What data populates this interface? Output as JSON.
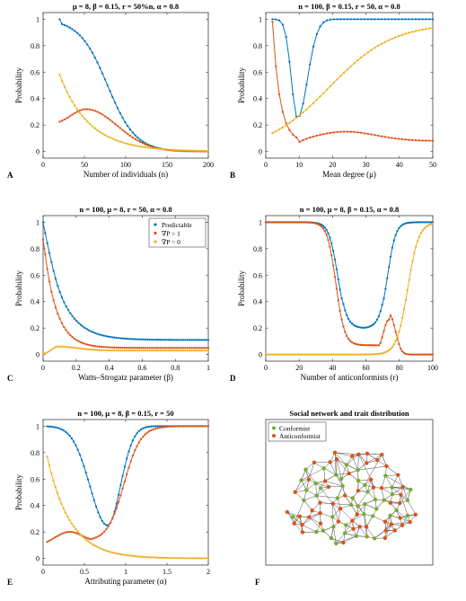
{
  "chart_data": [
    {
      "id": "A",
      "type": "line",
      "panel_label": "A",
      "title": "μ = 8, β = 0.15, r = 50%n, α = 0.8",
      "xlabel": "Number of individuals (n)",
      "ylabel": "Probability",
      "xlim": [
        0,
        200
      ],
      "ylim": [
        -0.05,
        1.05
      ],
      "xticks": [
        0,
        50,
        100,
        150,
        200
      ],
      "yticks": [
        0,
        0.2,
        0.4,
        0.6,
        0.8,
        1
      ],
      "xticklabels": [
        "0",
        "50",
        "100",
        "150",
        "200"
      ],
      "yticklabels": [
        "0",
        "0.2",
        "0.4",
        "0.6",
        "0.8",
        "1"
      ],
      "grid": false,
      "series": [
        {
          "color": "#0072BD",
          "curve": "sigmoid_down",
          "params": {
            "x0": 20,
            "x1": 200,
            "n": 60,
            "a": 1.0,
            "b": 0.0,
            "c": 78,
            "w": 17
          }
        },
        {
          "color": "#D95319",
          "curve": "hump",
          "params": {
            "x0": 20,
            "x1": 200,
            "n": 60,
            "base": 0.05,
            "end": 0.0,
            "peak": 0.32,
            "mu": 52,
            "sl": 18,
            "sr": 38,
            "start": 0.2
          }
        },
        {
          "color": "#EDB120",
          "curve": "decay",
          "params": {
            "x0": 20,
            "x1": 200,
            "n": 60,
            "a": 0.58,
            "c": 0.0,
            "k": 0.028,
            "xs": 20,
            "shoulder": 0.05
          }
        }
      ]
    },
    {
      "id": "B",
      "type": "line",
      "panel_label": "B",
      "title": "n = 100, β = 0.15, r = 50, α = 0.8",
      "xlabel": "Mean degree (μ)",
      "ylabel": "Probability",
      "xlim": [
        0,
        50
      ],
      "ylim": [
        -0.05,
        1.05
      ],
      "xticks": [
        0,
        10,
        20,
        30,
        40,
        50
      ],
      "yticks": [
        0,
        0.2,
        0.4,
        0.6,
        0.8,
        1
      ],
      "xticklabels": [
        "0",
        "10",
        "20",
        "30",
        "40",
        "50"
      ],
      "yticklabels": [
        "0",
        "0.2",
        "0.4",
        "0.6",
        "0.8",
        "1"
      ],
      "grid": false,
      "series": [
        {
          "color": "#0072BD",
          "curve": "dip",
          "params": {
            "x0": 2,
            "x1": 50,
            "n": 48,
            "hi": 1.0,
            "lo": 0.25,
            "mu": 9.5,
            "sl": 2.6,
            "sr": 4.2,
            "pow": 2
          }
        },
        {
          "color": "#D95319",
          "curve": "dropbump",
          "params": {
            "x0": 2,
            "x1": 50,
            "n": 48,
            "start": 0.98,
            "min": 0.07,
            "xmin": 10,
            "k": 0.45,
            "bump": 0.11,
            "bmu": 24,
            "bs": 9,
            "end": 0.04
          }
        },
        {
          "color": "#EDB120",
          "curve": "rise",
          "params": {
            "x0": 2,
            "x1": 50,
            "n": 48,
            "a": 0.0,
            "b": 0.97,
            "c": 19,
            "w": 9.5
          }
        }
      ]
    },
    {
      "id": "C",
      "type": "line",
      "panel_label": "C",
      "title": "n = 100, μ = 8, r = 50, α = 0.8",
      "xlabel": "Watts–Strogatz parameter (β)",
      "ylabel": "Probability",
      "xlim": [
        0,
        1
      ],
      "ylim": [
        -0.05,
        1.05
      ],
      "xticks": [
        0,
        0.2,
        0.4,
        0.6,
        0.8,
        1
      ],
      "yticks": [
        0,
        0.2,
        0.4,
        0.6,
        0.8,
        1
      ],
      "xticklabels": [
        "0",
        "0.2",
        "0.4",
        "0.6",
        "0.8",
        "1"
      ],
      "yticklabels": [
        "0",
        "0.2",
        "0.4",
        "0.6",
        "0.8",
        "1"
      ],
      "grid": false,
      "legend": {
        "position": "top-right",
        "entries": [
          "Predictable",
          "∇P > 1",
          "∇P = 0"
        ]
      },
      "series": [
        {
          "name": "Predictable",
          "color": "#0072BD",
          "curve": "decay",
          "params": {
            "x0": 0.0,
            "x1": 1.0,
            "n": 80,
            "a": 1.0,
            "c": 0.11,
            "k": 9.0,
            "xs": 0.0,
            "shoulder": 0.06
          }
        },
        {
          "name": "∇P > 1",
          "color": "#D95319",
          "curve": "decay",
          "params": {
            "x0": 0.0,
            "x1": 1.0,
            "n": 80,
            "a": 0.87,
            "c": 0.05,
            "k": 13.0,
            "xs": 0.0,
            "shoulder": 0.02
          }
        },
        {
          "name": "∇P = 0",
          "color": "#EDB120",
          "curve": "hump",
          "params": {
            "x0": 0.0,
            "x1": 1.0,
            "n": 80,
            "base": 0.0,
            "end": 0.03,
            "peak": 0.06,
            "mu": 0.09,
            "sl": 0.04,
            "sr": 0.12,
            "start": 0.0
          }
        }
      ]
    },
    {
      "id": "D",
      "type": "line",
      "panel_label": "D",
      "title": "n = 100, μ = 8, β = 0.15, α = 0.8",
      "xlabel": "Number of anticonformists (r)",
      "ylabel": "Probability",
      "xlim": [
        0,
        100
      ],
      "ylim": [
        -0.05,
        1.05
      ],
      "xticks": [
        0,
        20,
        40,
        60,
        80,
        100
      ],
      "yticks": [
        0,
        0.2,
        0.4,
        0.6,
        0.8,
        1
      ],
      "xticklabels": [
        "0",
        "20",
        "40",
        "60",
        "80",
        "100"
      ],
      "yticklabels": [
        "0",
        "0.2",
        "0.4",
        "0.6",
        "0.8",
        "1"
      ],
      "grid": false,
      "series": [
        {
          "color": "#0072BD",
          "curve": "valley",
          "params": {
            "x0": 0,
            "x1": 100,
            "n": 100,
            "hi": 1.0,
            "lo": 0.2,
            "c1": 43,
            "w1": 2.6,
            "c2": 73,
            "w2": 2.4,
            "tilt": 0.07
          }
        },
        {
          "color": "#D95319",
          "curve": "valleyhump",
          "params": {
            "x0": 0,
            "x1": 100,
            "n": 100,
            "c1": 42,
            "w1": 2.6,
            "lo": 0.07,
            "peak": 0.28,
            "mu": 74,
            "s": 3.5,
            "c3": 78,
            "w3": 2.2
          }
        },
        {
          "color": "#EDB120",
          "curve": "rise",
          "params": {
            "x0": 0,
            "x1": 100,
            "n": 100,
            "a": 0.0,
            "b": 1.0,
            "c": 85,
            "w": 3.3
          }
        }
      ]
    },
    {
      "id": "E",
      "type": "line",
      "panel_label": "E",
      "title": "n = 100, μ = 8, β = 0.15, r = 50",
      "xlabel": "Attributing parameter (α)",
      "ylabel": "Probability",
      "xlim": [
        0,
        2
      ],
      "ylim": [
        -0.05,
        1.05
      ],
      "xticks": [
        0,
        0.5,
        1,
        1.5,
        2
      ],
      "yticks": [
        0,
        0.2,
        0.4,
        0.6,
        0.8,
        1
      ],
      "xticklabels": [
        "0",
        "0.5",
        "1",
        "1.5",
        "2"
      ],
      "yticklabels": [
        "0",
        "0.2",
        "0.4",
        "0.6",
        "0.8",
        "1"
      ],
      "grid": false,
      "series": [
        {
          "color": "#0072BD",
          "curve": "dip",
          "params": {
            "x0": 0.05,
            "x1": 2.0,
            "n": 80,
            "hi": 1.0,
            "lo": 0.25,
            "mu": 0.78,
            "sl": 0.3,
            "sr": 0.22,
            "pow": 2
          }
        },
        {
          "color": "#D95319",
          "curve": "humprise",
          "params": {
            "x0": 0.05,
            "x1": 2.0,
            "n": 80,
            "start": 0.09,
            "peak": 0.2,
            "mu": 0.32,
            "s": 0.18,
            "lo": 0.13,
            "c": 0.98,
            "w": 0.1
          }
        },
        {
          "color": "#EDB120",
          "curve": "decay",
          "params": {
            "x0": 0.05,
            "x1": 2.0,
            "n": 80,
            "a": 0.77,
            "c": 0.0,
            "k": 3.6,
            "xs": 0.05,
            "shoulder": 0.0
          }
        }
      ]
    }
  ],
  "network": {
    "panel_label": "F",
    "title": "Social network and trait distribution",
    "legend": [
      {
        "label": "Conformist",
        "color": "#77AC30"
      },
      {
        "label": "Anticonformist",
        "color": "#D95319"
      }
    ],
    "node_count": 100,
    "edge_color": "#4d4d4d"
  }
}
